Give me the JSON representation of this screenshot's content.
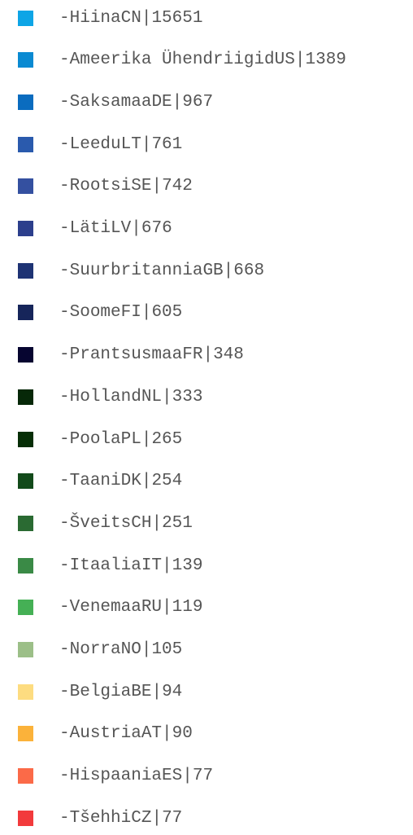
{
  "legend": {
    "prefix": "-",
    "separator": "|",
    "items": [
      {
        "name": "Hiina",
        "code": "CN",
        "value": 15651,
        "color": "#0ea5e6"
      },
      {
        "name": "Ameerika Ühendriigid",
        "code": "US",
        "value": 1389,
        "color": "#0a8ad2"
      },
      {
        "name": "Saksamaa",
        "code": "DE",
        "value": 967,
        "color": "#0a6cbf"
      },
      {
        "name": "Leedu",
        "code": "LT",
        "value": 761,
        "color": "#2a5aad"
      },
      {
        "name": "Rootsi",
        "code": "SE",
        "value": 742,
        "color": "#3450a0"
      },
      {
        "name": "Läti",
        "code": "LV",
        "value": 676,
        "color": "#2c3f8c"
      },
      {
        "name": "Suurbritannia",
        "code": "GB",
        "value": 668,
        "color": "#1e3374"
      },
      {
        "name": "Soome",
        "code": "FI",
        "value": 605,
        "color": "#16255a"
      },
      {
        "name": "Prantsusmaa",
        "code": "FR",
        "value": 348,
        "color": "#060530"
      },
      {
        "name": "Holland",
        "code": "NL",
        "value": 333,
        "color": "#062808"
      },
      {
        "name": "Poola",
        "code": "PL",
        "value": 265,
        "color": "#062e06"
      },
      {
        "name": "Taani",
        "code": "DK",
        "value": 254,
        "color": "#124a1a"
      },
      {
        "name": "Šveits",
        "code": "CH",
        "value": 251,
        "color": "#2a6a32"
      },
      {
        "name": "Itaalia",
        "code": "IT",
        "value": 139,
        "color": "#3a8a46"
      },
      {
        "name": "Venemaa",
        "code": "RU",
        "value": 119,
        "color": "#45b055"
      },
      {
        "name": "Norra",
        "code": "NO",
        "value": 105,
        "color": "#9cbf88"
      },
      {
        "name": "Belgia",
        "code": "BE",
        "value": 94,
        "color": "#fddc80"
      },
      {
        "name": "Austria",
        "code": "AT",
        "value": 90,
        "color": "#fbb23a"
      },
      {
        "name": "Hispaania",
        "code": "ES",
        "value": 77,
        "color": "#fb6a48"
      },
      {
        "name": "Tšehhi",
        "code": "CZ",
        "value": 77,
        "color": "#f23a3c"
      }
    ]
  }
}
